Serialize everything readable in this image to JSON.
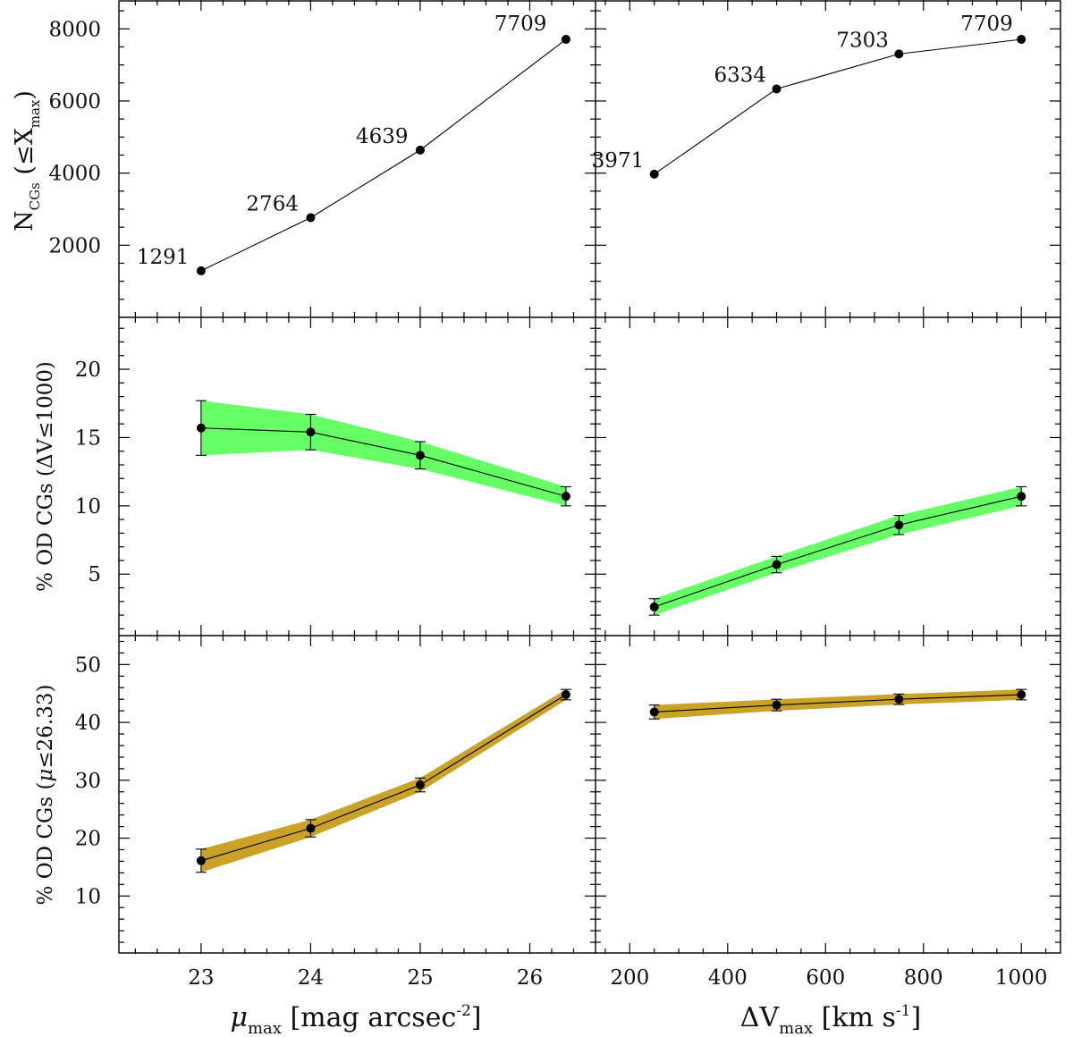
{
  "colors": {
    "green_band": "#66ff66",
    "gold_band": "#c9a227",
    "line": "#000000"
  },
  "axis_labels": {
    "y_top": {
      "main": "N",
      "sub": "CGs",
      "paren": "(≤X",
      "paren_sub": "max",
      "close": ")"
    },
    "y_mid": {
      "text": "% OD CGs (ΔV≤1000)"
    },
    "y_bot": {
      "text_a": "% OD CGs (",
      "mu": "μ",
      "text_b": "≤26.33)"
    },
    "x_left": {
      "mu": "μ",
      "sub": "max",
      "text": "[mag arcsec",
      "sup": "-2",
      "close": "]"
    },
    "x_right": {
      "delta": "ΔV",
      "sub": "max",
      "text": "[km s",
      "sup": "-1",
      "close": "]"
    }
  },
  "chart_data": [
    {
      "id": "top-left",
      "type": "line",
      "x_var": "mu_max",
      "x": [
        23,
        24,
        25,
        26.33
      ],
      "y": [
        1291,
        2764,
        4639,
        7709
      ],
      "point_labels": [
        "1291",
        "2764",
        "4639",
        "7709"
      ],
      "xlim": [
        22.25,
        26.6
      ],
      "ylim": [
        0,
        8800
      ],
      "yticks_major": [
        2000,
        4000,
        6000,
        8000
      ],
      "y_minor_step": 500,
      "xticks_major": [
        23,
        24,
        25,
        26
      ],
      "x_minor_step": 0.2,
      "ylabel": "N_CGs (≤X_max)"
    },
    {
      "id": "top-right",
      "type": "line",
      "x_var": "dV_max",
      "x": [
        250,
        500,
        750,
        1000
      ],
      "y": [
        3971,
        6334,
        7303,
        7709
      ],
      "point_labels": [
        "3971",
        "6334",
        "7303",
        "7709"
      ],
      "xlim": [
        130,
        1080
      ],
      "ylim": [
        0,
        8800
      ],
      "yticks_major": [
        2000,
        4000,
        6000,
        8000
      ],
      "y_minor_step": 500,
      "xticks_major": [
        200,
        400,
        600,
        800,
        1000
      ],
      "x_minor_step": 50
    },
    {
      "id": "mid-left",
      "type": "line",
      "x_var": "mu_max",
      "x": [
        23,
        24,
        25,
        26.33
      ],
      "y": [
        15.7,
        15.4,
        13.7,
        10.7
      ],
      "yerr": [
        2.0,
        1.3,
        1.0,
        0.7
      ],
      "band": "green",
      "xlim": [
        22.25,
        26.6
      ],
      "ylim": [
        0.5,
        23.8
      ],
      "yticks_major": [
        5,
        10,
        15,
        20
      ],
      "y_minor_step": 1,
      "xticks_major": [
        23,
        24,
        25,
        26
      ],
      "x_minor_step": 0.2,
      "ylabel": "% OD CGs (ΔV≤1000)"
    },
    {
      "id": "mid-right",
      "type": "line",
      "x_var": "dV_max",
      "x": [
        250,
        500,
        750,
        1000
      ],
      "y": [
        2.6,
        5.7,
        8.6,
        10.7
      ],
      "yerr": [
        0.6,
        0.6,
        0.7,
        0.7
      ],
      "band": "green",
      "xlim": [
        130,
        1080
      ],
      "ylim": [
        0.5,
        23.8
      ],
      "yticks_major": [
        5,
        10,
        15,
        20
      ],
      "y_minor_step": 1,
      "xticks_major": [
        200,
        400,
        600,
        800,
        1000
      ],
      "x_minor_step": 50
    },
    {
      "id": "bot-left",
      "type": "line",
      "x_var": "mu_max",
      "x": [
        23,
        24,
        25,
        26.33
      ],
      "y": [
        16.1,
        21.7,
        29.2,
        44.8
      ],
      "yerr": [
        2.0,
        1.5,
        1.2,
        0.9
      ],
      "band": "gold",
      "xlim": [
        22.25,
        26.6
      ],
      "ylim": [
        0,
        55
      ],
      "yticks_major": [
        10,
        20,
        30,
        40,
        50
      ],
      "y_minor_step": 2,
      "xticks_major": [
        23,
        24,
        25,
        26
      ],
      "x_minor_step": 0.2,
      "xtick_labels": [
        "23",
        "24",
        "25",
        "26"
      ],
      "ylabel": "% OD CGs (μ≤26.33)",
      "xlabel": "μ_max [mag arcsec^-2]"
    },
    {
      "id": "bot-right",
      "type": "line",
      "x_var": "dV_max",
      "x": [
        250,
        500,
        750,
        1000
      ],
      "y": [
        41.8,
        43.0,
        44.0,
        44.8
      ],
      "yerr": [
        1.2,
        1.0,
        0.9,
        0.9
      ],
      "band": "gold",
      "xlim": [
        130,
        1080
      ],
      "ylim": [
        0,
        55
      ],
      "yticks_major": [
        10,
        20,
        30,
        40,
        50
      ],
      "y_minor_step": 2,
      "xticks_major": [
        200,
        400,
        600,
        800,
        1000
      ],
      "x_minor_step": 50,
      "xtick_labels": [
        "200",
        "400",
        "600",
        "800",
        "1000"
      ],
      "xlabel": "ΔV_max [km s^-1]"
    }
  ]
}
